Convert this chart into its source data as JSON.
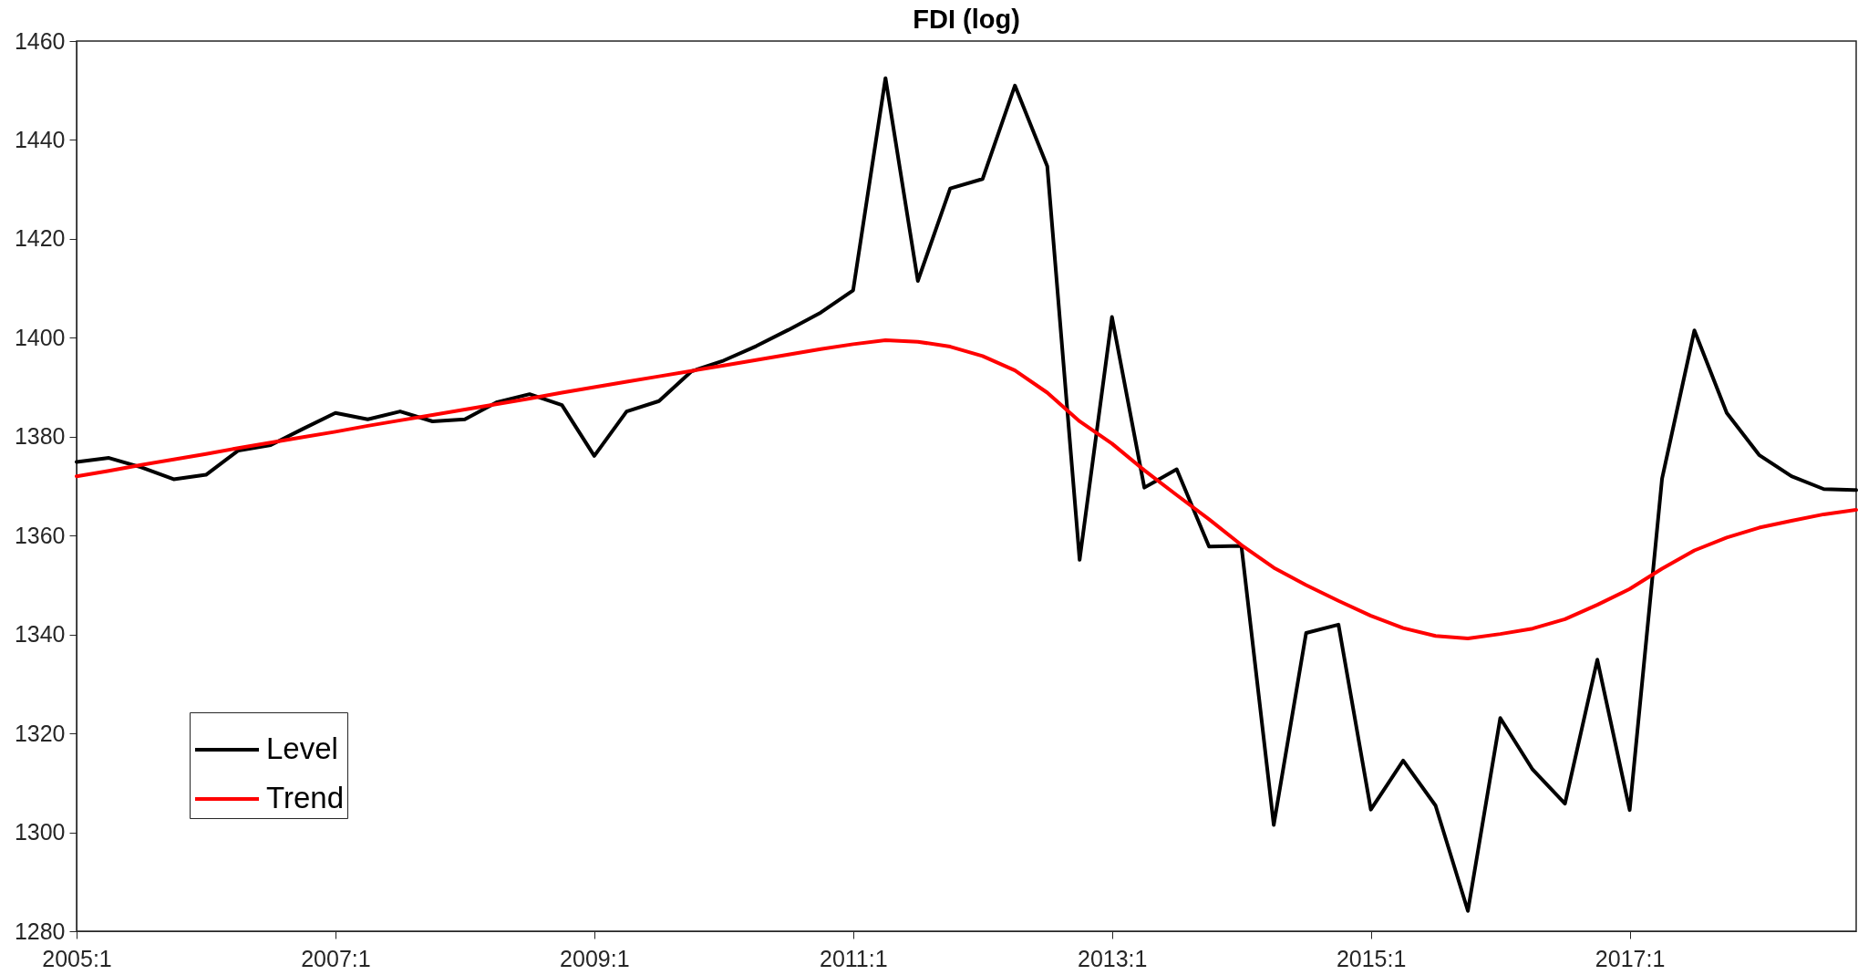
{
  "chart_data": {
    "type": "line",
    "title": "FDI (log)",
    "categories": [
      "2005:1",
      null,
      null,
      null,
      null,
      null,
      null,
      null,
      "2007:1",
      null,
      null,
      null,
      null,
      null,
      null,
      null,
      "2009:1",
      null,
      null,
      null,
      null,
      null,
      null,
      null,
      "2011:1",
      null,
      null,
      null,
      null,
      null,
      null,
      null,
      "2013:1",
      null,
      null,
      null,
      null,
      null,
      null,
      null,
      "2015:1",
      null,
      null,
      null,
      null,
      null,
      null,
      null,
      "2017:1",
      null,
      null,
      null,
      null,
      null,
      null,
      null
    ],
    "series": [
      {
        "name": "Level",
        "color": "#000000",
        "values": [
          1374.9,
          1375.7,
          1373.8,
          1371.4,
          1372.3,
          1377.2,
          1378.3,
          1381.6,
          1384.8,
          1383.5,
          1385.1,
          1383.1,
          1383.5,
          1387.0,
          1388.6,
          1386.4,
          1376.1,
          1385.1,
          1387.2,
          1393.2,
          1395.4,
          1398.3,
          1401.6,
          1405.1,
          1409.6,
          1452.5,
          1411.5,
          1430.2,
          1432.1,
          1451.0,
          1434.7,
          1355.1,
          1404.2,
          1369.7,
          1373.4,
          1357.8,
          1357.9,
          1301.5,
          1340.3,
          1342.0,
          1304.6,
          1314.5,
          1305.4,
          1284.1,
          1323.1,
          1312.7,
          1305.8,
          1334.9,
          1304.5,
          1371.5,
          1401.5,
          1384.8,
          1376.3,
          1372.0,
          1369.4,
          1369.2
        ]
      },
      {
        "name": "Trend",
        "color": "#ff0000",
        "values": [
          1372.0,
          1373.1,
          1374.3,
          1375.4,
          1376.5,
          1377.7,
          1378.8,
          1379.9,
          1381.0,
          1382.2,
          1383.3,
          1384.4,
          1385.5,
          1386.6,
          1387.7,
          1388.9,
          1390.0,
          1391.1,
          1392.2,
          1393.3,
          1394.4,
          1395.5,
          1396.6,
          1397.7,
          1398.7,
          1399.5,
          1399.2,
          1398.2,
          1396.3,
          1393.4,
          1388.9,
          1383.1,
          1378.6,
          1373.2,
          1368.2,
          1363.3,
          1358.1,
          1353.5,
          1350.0,
          1346.8,
          1343.8,
          1341.3,
          1339.7,
          1339.2,
          1340.1,
          1341.2,
          1343.1,
          1346.0,
          1349.2,
          1353.3,
          1357.0,
          1359.6,
          1361.6,
          1363.0,
          1364.3,
          1365.2
        ]
      }
    ],
    "ylim": [
      1280,
      1460
    ],
    "yticks": [
      1280,
      1300,
      1320,
      1340,
      1360,
      1380,
      1400,
      1420,
      1440,
      1460
    ],
    "legend": "bottom left"
  }
}
